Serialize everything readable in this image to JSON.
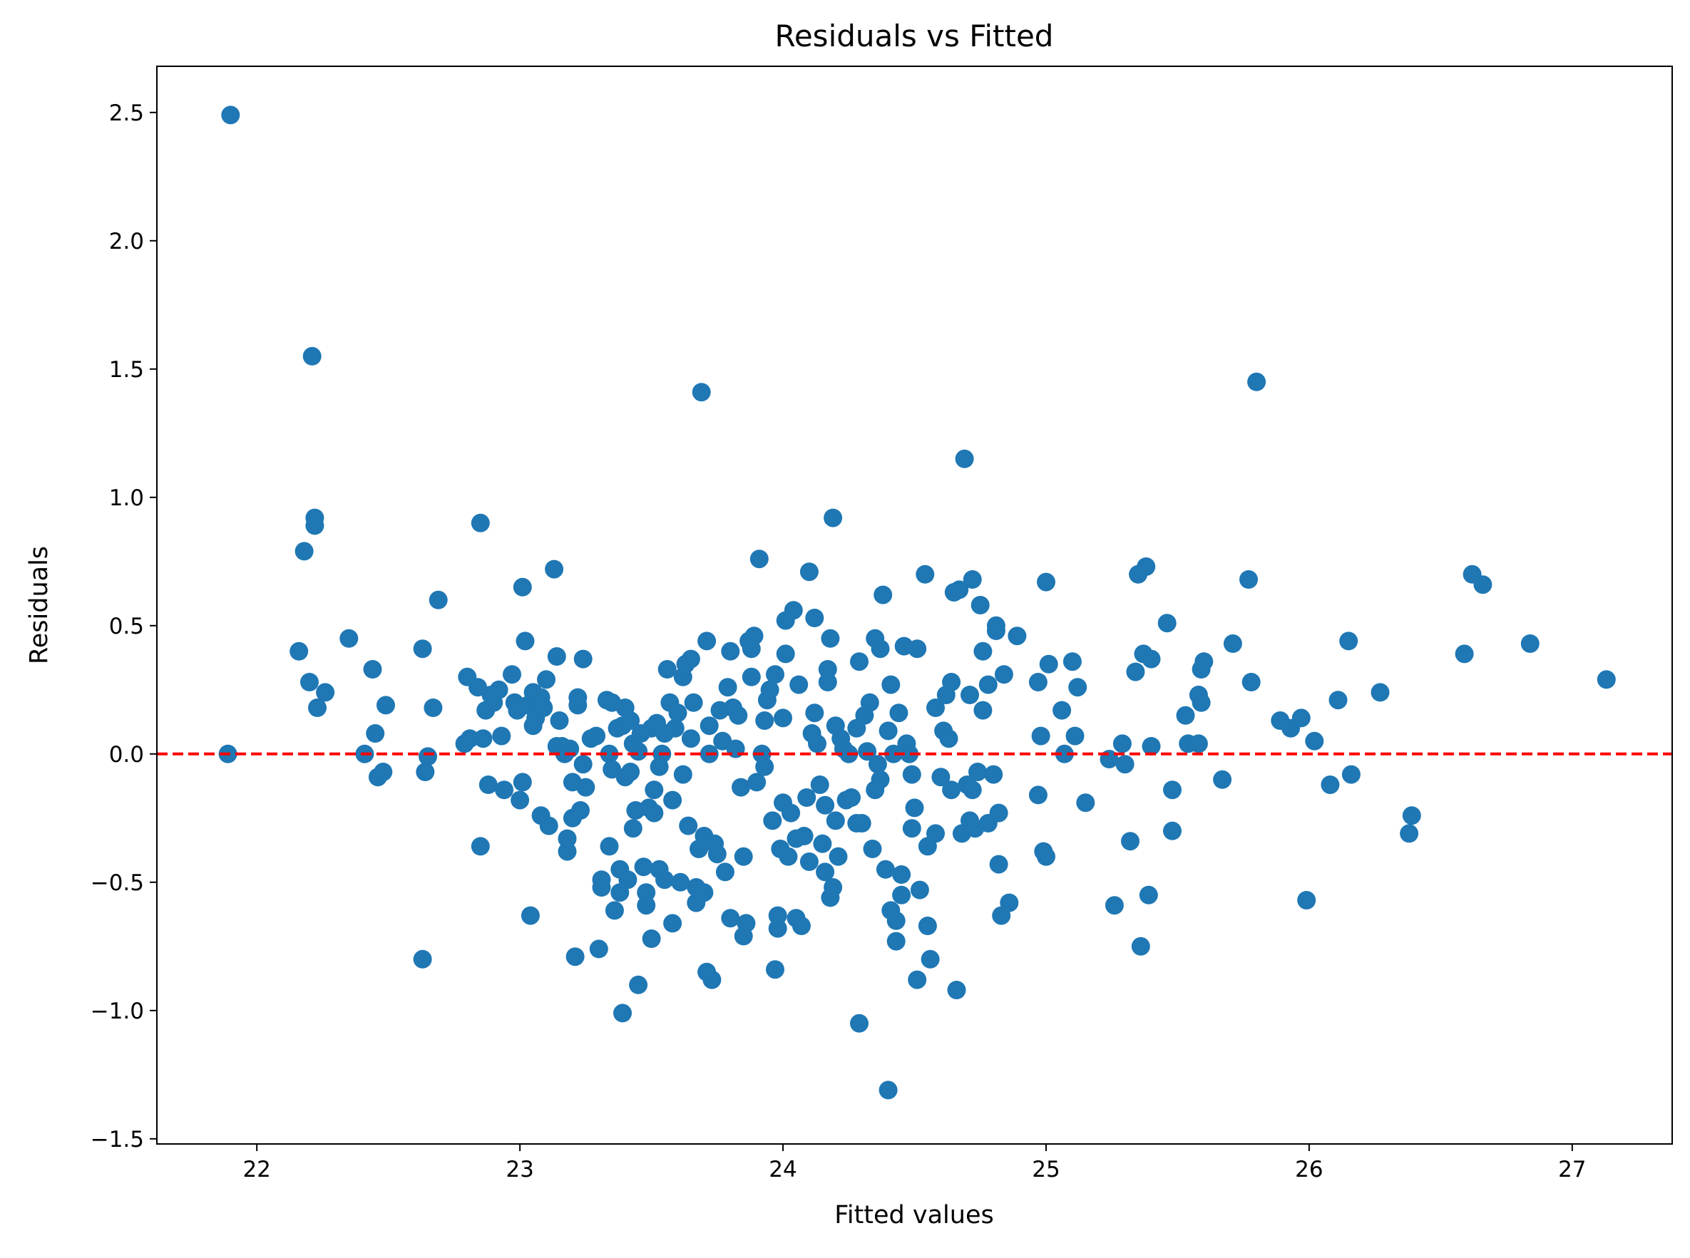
{
  "chart_data": {
    "type": "scatter",
    "title": "Residuals vs Fitted",
    "xlabel": "Fitted values",
    "ylabel": "Residuals",
    "xlim": [
      21.62,
      27.38
    ],
    "ylim": [
      -1.52,
      2.68
    ],
    "xticks": [
      22,
      23,
      24,
      25,
      26,
      27
    ],
    "yticks": [
      -1.5,
      -1.0,
      -0.5,
      0.0,
      0.5,
      1.0,
      1.5,
      2.0,
      2.5
    ],
    "ytick_labels": [
      "−1.5",
      "−1.0",
      "−0.5",
      "0.0",
      "0.5",
      "1.0",
      "1.5",
      "2.0",
      "2.5"
    ],
    "marker_color": "#1f77b4",
    "reference_line": {
      "y": 0,
      "color": "#ff0000",
      "style": "dashed"
    },
    "grid": false,
    "points": [
      [
        21.9,
        2.49
      ],
      [
        21.89,
        0.0
      ],
      [
        22.16,
        0.4
      ],
      [
        22.18,
        0.79
      ],
      [
        22.2,
        0.28
      ],
      [
        22.21,
        1.55
      ],
      [
        22.22,
        0.92
      ],
      [
        22.22,
        0.89
      ],
      [
        22.23,
        0.18
      ],
      [
        22.26,
        0.24
      ],
      [
        22.35,
        0.45
      ],
      [
        22.41,
        0.0
      ],
      [
        22.44,
        0.33
      ],
      [
        22.45,
        0.08
      ],
      [
        22.46,
        -0.09
      ],
      [
        22.48,
        -0.07
      ],
      [
        22.49,
        0.19
      ],
      [
        22.63,
        0.41
      ],
      [
        22.63,
        -0.8
      ],
      [
        22.64,
        -0.07
      ],
      [
        22.65,
        -0.01
      ],
      [
        22.67,
        0.18
      ],
      [
        22.69,
        0.6
      ],
      [
        22.79,
        0.04
      ],
      [
        22.8,
        0.3
      ],
      [
        22.81,
        0.06
      ],
      [
        22.84,
        0.26
      ],
      [
        22.85,
        0.9
      ],
      [
        22.85,
        -0.36
      ],
      [
        22.86,
        0.06
      ],
      [
        22.87,
        0.17
      ],
      [
        22.88,
        -0.12
      ],
      [
        22.89,
        0.23
      ],
      [
        22.9,
        0.2
      ],
      [
        22.92,
        0.25
      ],
      [
        22.93,
        0.07
      ],
      [
        22.94,
        -0.14
      ],
      [
        22.97,
        0.31
      ],
      [
        22.98,
        0.2
      ],
      [
        22.99,
        0.17
      ],
      [
        23.0,
        -0.18
      ],
      [
        23.01,
        0.65
      ],
      [
        23.01,
        -0.11
      ],
      [
        23.02,
        0.44
      ],
      [
        23.03,
        0.19
      ],
      [
        23.04,
        -0.63
      ],
      [
        23.05,
        0.11
      ],
      [
        23.05,
        0.24
      ],
      [
        23.06,
        0.14
      ],
      [
        23.08,
        0.22
      ],
      [
        23.08,
        -0.24
      ],
      [
        23.09,
        0.18
      ],
      [
        23.1,
        0.29
      ],
      [
        23.11,
        -0.28
      ],
      [
        23.13,
        0.72
      ],
      [
        23.14,
        0.38
      ],
      [
        23.14,
        0.03
      ],
      [
        23.15,
        0.13
      ],
      [
        23.16,
        0.03
      ],
      [
        23.17,
        0.0
      ],
      [
        23.18,
        -0.38
      ],
      [
        23.18,
        -0.33
      ],
      [
        23.19,
        0.02
      ],
      [
        23.2,
        -0.25
      ],
      [
        23.2,
        -0.11
      ],
      [
        23.21,
        -0.79
      ],
      [
        23.22,
        0.22
      ],
      [
        23.22,
        0.19
      ],
      [
        23.23,
        -0.22
      ],
      [
        23.24,
        -0.04
      ],
      [
        23.24,
        0.37
      ],
      [
        23.25,
        -0.13
      ],
      [
        23.27,
        0.06
      ],
      [
        23.29,
        0.07
      ],
      [
        23.3,
        -0.76
      ],
      [
        23.31,
        -0.49
      ],
      [
        23.31,
        -0.52
      ],
      [
        23.33,
        0.21
      ],
      [
        23.34,
        -0.36
      ],
      [
        23.34,
        0.0
      ],
      [
        23.35,
        -0.06
      ],
      [
        23.35,
        0.2
      ],
      [
        23.36,
        -0.61
      ],
      [
        23.37,
        0.1
      ],
      [
        23.38,
        -0.45
      ],
      [
        23.38,
        -0.54
      ],
      [
        23.39,
        -1.01
      ],
      [
        23.39,
        0.11
      ],
      [
        23.4,
        0.18
      ],
      [
        23.4,
        -0.09
      ],
      [
        23.41,
        -0.49
      ],
      [
        23.42,
        0.13
      ],
      [
        23.42,
        -0.07
      ],
      [
        23.43,
        0.04
      ],
      [
        23.43,
        -0.29
      ],
      [
        23.44,
        -0.22
      ],
      [
        23.45,
        -0.9
      ],
      [
        23.45,
        0.01
      ],
      [
        23.46,
        0.08
      ],
      [
        23.47,
        -0.44
      ],
      [
        23.48,
        -0.54
      ],
      [
        23.48,
        -0.59
      ],
      [
        23.49,
        -0.21
      ],
      [
        23.5,
        0.1
      ],
      [
        23.5,
        -0.72
      ],
      [
        23.51,
        -0.14
      ],
      [
        23.51,
        -0.23
      ],
      [
        23.52,
        0.12
      ],
      [
        23.53,
        -0.45
      ],
      [
        23.53,
        -0.05
      ],
      [
        23.54,
        0.0
      ],
      [
        23.55,
        0.08
      ],
      [
        23.55,
        -0.49
      ],
      [
        23.56,
        0.33
      ],
      [
        23.57,
        0.2
      ],
      [
        23.58,
        -0.66
      ],
      [
        23.58,
        -0.18
      ],
      [
        23.59,
        0.1
      ],
      [
        23.6,
        0.16
      ],
      [
        23.61,
        -0.5
      ],
      [
        23.62,
        -0.08
      ],
      [
        23.62,
        0.3
      ],
      [
        23.63,
        0.35
      ],
      [
        23.64,
        -0.28
      ],
      [
        23.65,
        0.06
      ],
      [
        23.65,
        0.37
      ],
      [
        23.66,
        0.2
      ],
      [
        23.67,
        -0.52
      ],
      [
        23.67,
        -0.58
      ],
      [
        23.68,
        -0.37
      ],
      [
        23.69,
        1.41
      ],
      [
        23.7,
        -0.32
      ],
      [
        23.7,
        -0.54
      ],
      [
        23.71,
        -0.85
      ],
      [
        23.71,
        0.44
      ],
      [
        23.72,
        0.11
      ],
      [
        23.72,
        0.0
      ],
      [
        23.73,
        -0.88
      ],
      [
        23.74,
        -0.35
      ],
      [
        23.75,
        -0.39
      ],
      [
        23.76,
        0.17
      ],
      [
        23.77,
        0.05
      ],
      [
        23.78,
        -0.46
      ],
      [
        23.79,
        0.26
      ],
      [
        23.8,
        0.4
      ],
      [
        23.8,
        -0.64
      ],
      [
        23.81,
        0.18
      ],
      [
        23.82,
        0.02
      ],
      [
        23.83,
        0.15
      ],
      [
        23.84,
        -0.13
      ],
      [
        23.85,
        -0.4
      ],
      [
        23.85,
        -0.71
      ],
      [
        23.86,
        -0.66
      ],
      [
        23.87,
        0.44
      ],
      [
        23.88,
        0.3
      ],
      [
        23.88,
        0.41
      ],
      [
        23.89,
        0.46
      ],
      [
        23.9,
        -0.11
      ],
      [
        23.91,
        0.76
      ],
      [
        23.92,
        0.0
      ],
      [
        23.93,
        -0.05
      ],
      [
        23.93,
        0.13
      ],
      [
        23.94,
        0.21
      ],
      [
        23.95,
        0.25
      ],
      [
        23.96,
        -0.26
      ],
      [
        23.97,
        0.31
      ],
      [
        23.97,
        -0.84
      ],
      [
        23.98,
        -0.68
      ],
      [
        23.98,
        -0.63
      ],
      [
        23.99,
        -0.37
      ],
      [
        24.0,
        -0.19
      ],
      [
        24.0,
        0.14
      ],
      [
        24.01,
        0.39
      ],
      [
        24.01,
        0.52
      ],
      [
        24.02,
        -0.4
      ],
      [
        24.03,
        -0.23
      ],
      [
        24.04,
        0.56
      ],
      [
        24.05,
        -0.33
      ],
      [
        24.05,
        -0.64
      ],
      [
        24.06,
        0.27
      ],
      [
        24.07,
        -0.67
      ],
      [
        24.08,
        -0.32
      ],
      [
        24.09,
        -0.17
      ],
      [
        24.1,
        -0.42
      ],
      [
        24.1,
        0.71
      ],
      [
        24.11,
        0.08
      ],
      [
        24.12,
        0.53
      ],
      [
        24.12,
        0.16
      ],
      [
        24.13,
        0.04
      ],
      [
        24.14,
        -0.12
      ],
      [
        24.15,
        -0.35
      ],
      [
        24.16,
        -0.2
      ],
      [
        24.16,
        -0.46
      ],
      [
        24.17,
        0.33
      ],
      [
        24.17,
        0.28
      ],
      [
        24.18,
        0.45
      ],
      [
        24.18,
        -0.56
      ],
      [
        24.19,
        -0.52
      ],
      [
        24.19,
        0.92
      ],
      [
        24.2,
        -0.26
      ],
      [
        24.2,
        0.11
      ],
      [
        24.21,
        -0.4
      ],
      [
        24.22,
        0.06
      ],
      [
        24.23,
        0.02
      ],
      [
        24.24,
        -0.18
      ],
      [
        24.25,
        0.0
      ],
      [
        24.26,
        -0.17
      ],
      [
        24.28,
        0.1
      ],
      [
        24.28,
        -0.27
      ],
      [
        24.29,
        0.36
      ],
      [
        24.29,
        -1.05
      ],
      [
        24.3,
        -0.27
      ],
      [
        24.31,
        0.15
      ],
      [
        24.32,
        0.01
      ],
      [
        24.33,
        0.2
      ],
      [
        24.34,
        -0.37
      ],
      [
        24.35,
        0.45
      ],
      [
        24.35,
        -0.14
      ],
      [
        24.36,
        -0.04
      ],
      [
        24.37,
        -0.1
      ],
      [
        24.37,
        0.41
      ],
      [
        24.38,
        0.62
      ],
      [
        24.39,
        -0.45
      ],
      [
        24.4,
        0.09
      ],
      [
        24.4,
        -1.31
      ],
      [
        24.41,
        0.27
      ],
      [
        24.41,
        -0.61
      ],
      [
        24.42,
        0.0
      ],
      [
        24.43,
        -0.73
      ],
      [
        24.43,
        -0.65
      ],
      [
        24.44,
        0.16
      ],
      [
        24.45,
        -0.55
      ],
      [
        24.45,
        -0.47
      ],
      [
        24.46,
        0.42
      ],
      [
        24.47,
        0.04
      ],
      [
        24.48,
        0.0
      ],
      [
        24.49,
        -0.08
      ],
      [
        24.49,
        -0.29
      ],
      [
        24.5,
        -0.21
      ],
      [
        24.51,
        0.41
      ],
      [
        24.51,
        -0.88
      ],
      [
        24.52,
        -0.53
      ],
      [
        24.54,
        0.7
      ],
      [
        24.55,
        -0.67
      ],
      [
        24.55,
        -0.36
      ],
      [
        24.56,
        -0.8
      ],
      [
        24.58,
        0.18
      ],
      [
        24.58,
        -0.31
      ],
      [
        24.6,
        -0.09
      ],
      [
        24.61,
        0.09
      ],
      [
        24.62,
        0.23
      ],
      [
        24.63,
        0.06
      ],
      [
        24.64,
        0.28
      ],
      [
        24.64,
        -0.14
      ],
      [
        24.65,
        0.63
      ],
      [
        24.66,
        -0.92
      ],
      [
        24.67,
        0.64
      ],
      [
        24.68,
        -0.31
      ],
      [
        24.69,
        1.15
      ],
      [
        24.7,
        -0.12
      ],
      [
        24.71,
        0.23
      ],
      [
        24.71,
        -0.26
      ],
      [
        24.72,
        -0.14
      ],
      [
        24.72,
        0.68
      ],
      [
        24.73,
        -0.29
      ],
      [
        24.74,
        -0.07
      ],
      [
        24.75,
        0.58
      ],
      [
        24.76,
        0.17
      ],
      [
        24.76,
        0.4
      ],
      [
        24.78,
        0.27
      ],
      [
        24.78,
        -0.27
      ],
      [
        24.8,
        -0.08
      ],
      [
        24.81,
        0.5
      ],
      [
        24.81,
        0.48
      ],
      [
        24.82,
        -0.23
      ],
      [
        24.82,
        -0.43
      ],
      [
        24.83,
        -0.63
      ],
      [
        24.84,
        0.31
      ],
      [
        24.86,
        -0.58
      ],
      [
        24.89,
        0.46
      ],
      [
        24.97,
        0.28
      ],
      [
        24.97,
        -0.16
      ],
      [
        24.98,
        0.07
      ],
      [
        24.99,
        -0.38
      ],
      [
        25.0,
        0.67
      ],
      [
        25.0,
        -0.4
      ],
      [
        25.01,
        0.35
      ],
      [
        25.06,
        0.17
      ],
      [
        25.07,
        0.0
      ],
      [
        25.1,
        0.36
      ],
      [
        25.11,
        0.07
      ],
      [
        25.12,
        0.26
      ],
      [
        25.15,
        -0.19
      ],
      [
        25.24,
        -0.02
      ],
      [
        25.26,
        -0.59
      ],
      [
        25.29,
        0.04
      ],
      [
        25.3,
        -0.04
      ],
      [
        25.32,
        -0.34
      ],
      [
        25.34,
        0.32
      ],
      [
        25.35,
        0.7
      ],
      [
        25.36,
        -0.75
      ],
      [
        25.37,
        0.39
      ],
      [
        25.38,
        0.73
      ],
      [
        25.39,
        -0.55
      ],
      [
        25.4,
        0.37
      ],
      [
        25.4,
        0.03
      ],
      [
        25.46,
        0.51
      ],
      [
        25.48,
        -0.14
      ],
      [
        25.48,
        -0.3
      ],
      [
        25.53,
        0.15
      ],
      [
        25.54,
        0.04
      ],
      [
        25.58,
        0.04
      ],
      [
        25.58,
        0.23
      ],
      [
        25.59,
        0.2
      ],
      [
        25.59,
        0.33
      ],
      [
        25.6,
        0.36
      ],
      [
        25.67,
        -0.1
      ],
      [
        25.71,
        0.43
      ],
      [
        25.77,
        0.68
      ],
      [
        25.78,
        0.28
      ],
      [
        25.8,
        1.45
      ],
      [
        25.89,
        0.13
      ],
      [
        25.93,
        0.1
      ],
      [
        25.97,
        0.14
      ],
      [
        25.99,
        -0.57
      ],
      [
        26.02,
        0.05
      ],
      [
        26.08,
        -0.12
      ],
      [
        26.11,
        0.21
      ],
      [
        26.15,
        0.44
      ],
      [
        26.16,
        -0.08
      ],
      [
        26.27,
        0.24
      ],
      [
        26.38,
        -0.31
      ],
      [
        26.39,
        -0.24
      ],
      [
        26.59,
        0.39
      ],
      [
        26.62,
        0.7
      ],
      [
        26.66,
        0.66
      ],
      [
        26.84,
        0.43
      ],
      [
        27.13,
        0.29
      ]
    ]
  }
}
